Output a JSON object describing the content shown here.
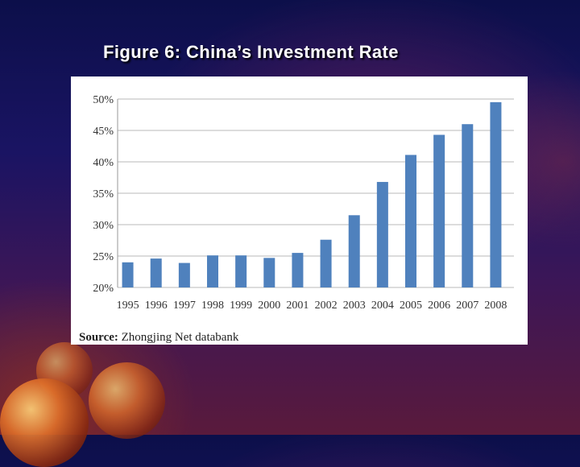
{
  "slide": {
    "title": "Figure 6: China’s Investment Rate",
    "source_label": "Source:",
    "source_text": " Zhongjing Net databank"
  },
  "colors": {
    "bar": "#4f81bd",
    "grid": "#c8c8c8",
    "tick_text": "#333333"
  },
  "chart_data": {
    "type": "bar",
    "title": "Figure 6: China’s Investment Rate",
    "xlabel": "",
    "ylabel": "",
    "categories": [
      "1995",
      "1996",
      "1997",
      "1998",
      "1999",
      "2000",
      "2001",
      "2002",
      "2003",
      "2004",
      "2005",
      "2006",
      "2007",
      "2008"
    ],
    "values": [
      24,
      24.6,
      23.9,
      25.1,
      25.1,
      24.7,
      25.5,
      27.6,
      31.5,
      36.8,
      41.1,
      44.3,
      46.0,
      49.5
    ],
    "unit": "%",
    "ylim": [
      20,
      50
    ],
    "yticks": [
      20,
      25,
      30,
      35,
      40,
      45,
      50
    ],
    "ytick_labels": [
      "20%",
      "25%",
      "30%",
      "35%",
      "40%",
      "45%",
      "50%"
    ],
    "grid": true,
    "legend": "none"
  }
}
